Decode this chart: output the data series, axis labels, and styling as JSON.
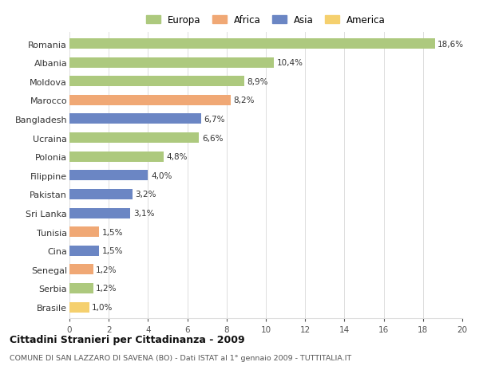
{
  "categories": [
    "Romania",
    "Albania",
    "Moldova",
    "Marocco",
    "Bangladesh",
    "Ucraina",
    "Polonia",
    "Filippine",
    "Pakistan",
    "Sri Lanka",
    "Tunisia",
    "Cina",
    "Senegal",
    "Serbia",
    "Brasile"
  ],
  "values": [
    18.6,
    10.4,
    8.9,
    8.2,
    6.7,
    6.6,
    4.8,
    4.0,
    3.2,
    3.1,
    1.5,
    1.5,
    1.2,
    1.2,
    1.0
  ],
  "labels": [
    "18,6%",
    "10,4%",
    "8,9%",
    "8,2%",
    "6,7%",
    "6,6%",
    "4,8%",
    "4,0%",
    "3,2%",
    "3,1%",
    "1,5%",
    "1,5%",
    "1,2%",
    "1,2%",
    "1,0%"
  ],
  "continents": [
    "Europa",
    "Europa",
    "Europa",
    "Africa",
    "Asia",
    "Europa",
    "Europa",
    "Asia",
    "Asia",
    "Asia",
    "Africa",
    "Asia",
    "Africa",
    "Europa",
    "America"
  ],
  "colors": {
    "Europa": "#adc97e",
    "Africa": "#f0a875",
    "Asia": "#6b86c4",
    "America": "#f5d06e"
  },
  "legend_order": [
    "Europa",
    "Africa",
    "Asia",
    "America"
  ],
  "title": "Cittadini Stranieri per Cittadinanza - 2009",
  "subtitle": "COMUNE DI SAN LAZZARO DI SAVENA (BO) - Dati ISTAT al 1° gennaio 2009 - TUTTITALIA.IT",
  "xlim": [
    0,
    20
  ],
  "xticks": [
    0,
    2,
    4,
    6,
    8,
    10,
    12,
    14,
    16,
    18,
    20
  ],
  "bg_color": "#ffffff",
  "grid_color": "#dddddd",
  "bar_height": 0.55
}
